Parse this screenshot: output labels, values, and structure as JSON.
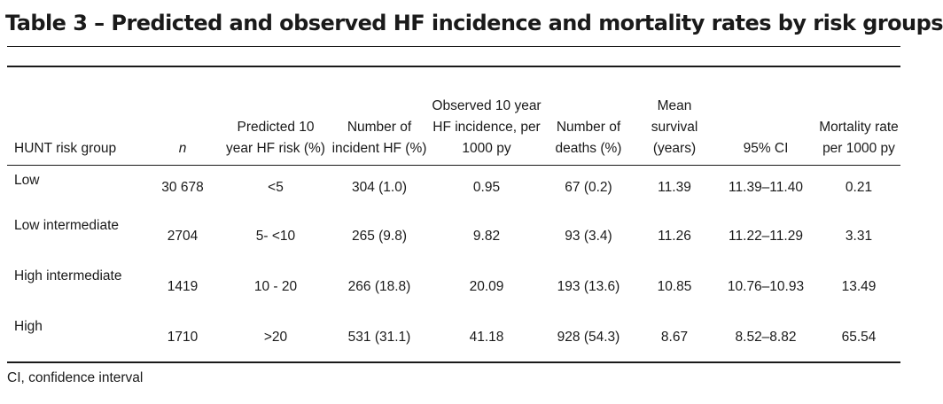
{
  "title": "Table 3 – Predicted and observed HF incidence and mortality rates by risk groups",
  "headers": [
    "HUNT risk group",
    "n",
    "Predicted 10 year HF risk (%)",
    "Number of incident HF (%)",
    "Observed 10 year HF incidence, per 1000 py",
    "Number of deaths (%)",
    "Mean survival (years)",
    "95% CI",
    "Mortality rate per 1000 py"
  ],
  "rows": [
    {
      "group": "Low",
      "n": "30 678",
      "predicted": "<5",
      "incident": "304 (1.0)",
      "observed": "0.95",
      "deaths": "67 (0.2)",
      "survival": "11.39",
      "ci": "11.39–11.40",
      "mortality": "0.21"
    },
    {
      "group": "Low intermediate",
      "n": "2704",
      "predicted": "5- <10",
      "incident": "265 (9.8)",
      "observed": "9.82",
      "deaths": "93 (3.4)",
      "survival": "11.26",
      "ci": "11.22–11.29",
      "mortality": "3.31"
    },
    {
      "group": "High intermediate",
      "n": "1419",
      "predicted": "10 - 20",
      "incident": "266 (18.8)",
      "observed": "20.09",
      "deaths": "193 (13.6)",
      "survival": "10.85",
      "ci": "10.76–10.93",
      "mortality": "13.49"
    },
    {
      "group": "High",
      "n": "1710",
      "predicted": ">20",
      "incident": "531 (31.1)",
      "observed": "41.18",
      "deaths": "928 (54.3)",
      "survival": "8.67",
      "ci": "8.52–8.82",
      "mortality": "65.54"
    }
  ],
  "footnote": "CI, confidence interval"
}
